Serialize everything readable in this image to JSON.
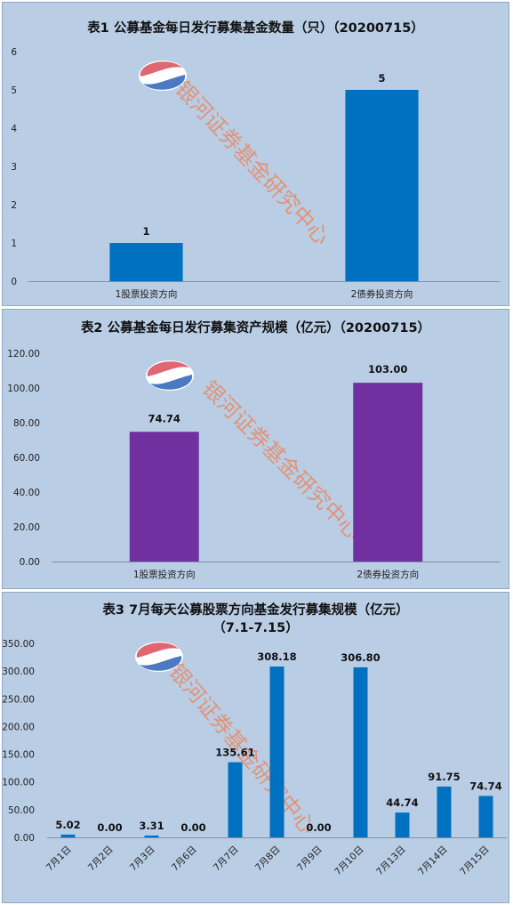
{
  "watermark": "银河证券基金研究中心",
  "charts": [
    {
      "title": "表1  公募基金每日发行募集基金数量（只）（20200715）",
      "type": "bar",
      "color": "#0070c0",
      "categories": [
        "1股票投资方向",
        "2债券投资方向"
      ],
      "values": [
        1,
        5
      ],
      "value_labels": [
        "1",
        "5"
      ],
      "ylim": [
        0,
        6
      ],
      "yticks": [
        "0",
        "1",
        "2",
        "3",
        "4",
        "5",
        "6"
      ]
    },
    {
      "title": "表2  公募基金每日发行募集资产规模（亿元）（20200715）",
      "type": "bar",
      "color": "#7030a0",
      "categories": [
        "1股票投资方向",
        "2债券投资方向"
      ],
      "values": [
        74.74,
        103.0
      ],
      "value_labels": [
        "74.74",
        "103.00"
      ],
      "ylim": [
        0,
        120
      ],
      "yticks": [
        "0.00",
        "20.00",
        "40.00",
        "60.00",
        "80.00",
        "100.00",
        "120.00"
      ]
    },
    {
      "title": "表3  7月每天公募股票方向基金发行募集规模（亿元）",
      "title2": "（7.1-7.15）",
      "type": "bar",
      "color": "#0070c0",
      "categories": [
        "7月1日",
        "7月2日",
        "7月3日",
        "7月6日",
        "7月7日",
        "7月8日",
        "7月9日",
        "7月10日",
        "7月13日",
        "7月14日",
        "7月15日"
      ],
      "values": [
        5.02,
        0.0,
        3.31,
        0.0,
        135.61,
        308.18,
        0.0,
        306.8,
        44.74,
        91.75,
        74.74
      ],
      "value_labels": [
        "5.02",
        "0.00",
        "3.31",
        "0.00",
        "135.61",
        "308.18",
        "0.00",
        "306.80",
        "44.74",
        "91.75",
        "74.74"
      ],
      "ylim": [
        0,
        350
      ],
      "yticks": [
        "0.00",
        "50.00",
        "100.00",
        "150.00",
        "200.00",
        "250.00",
        "300.00",
        "350.00"
      ]
    }
  ]
}
